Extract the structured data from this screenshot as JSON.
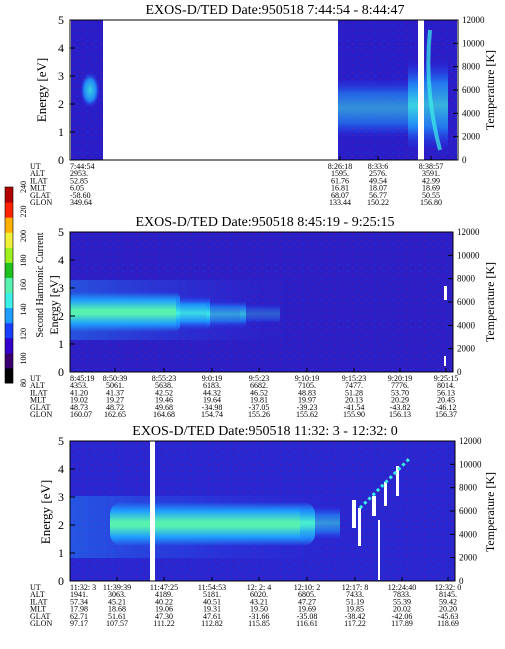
{
  "colorbar": {
    "label": "Second Harmonic Current",
    "ticks": [
      "80",
      "100",
      "120",
      "140",
      "160",
      "180",
      "200",
      "220",
      "240"
    ],
    "colors": [
      "#000000",
      "#3b0070",
      "#3300cc",
      "#1a40ff",
      "#1f9cff",
      "#3cf0e6",
      "#57f2b0",
      "#1fc21f",
      "#9ef01f",
      "#f0f03a",
      "#ffb000",
      "#ff2200",
      "#b40000"
    ]
  },
  "panels": [
    {
      "title": "EXOS-D/TED   Date:950518  7:44:54 - 8:44:47",
      "ylabel_left": "Energy [eV]",
      "ylabel_right": "Temperature [K]",
      "left_ticks": [
        "0",
        "1",
        "2",
        "3",
        "4",
        "5"
      ],
      "right_ticks": [
        "0",
        "2000",
        "4000",
        "6000",
        "8000",
        "10000",
        "12000"
      ],
      "row_labels": [
        "UT",
        "ALT",
        "ILAT",
        "MLT",
        "GLAT",
        "GLON"
      ],
      "columns": [
        [
          "7:44:54",
          "2953.",
          "52.85",
          "6.05",
          "-58.60",
          "349.64"
        ],
        [
          "8:26:18",
          "1595.",
          "61.76",
          "16.81",
          "68.07",
          "133.44"
        ],
        [
          "8:33:6",
          "2576.",
          "49.54",
          "18.07",
          "56.77",
          "150.22"
        ],
        [
          "8:38:57",
          "3591.",
          "42.99",
          "18.69",
          "50.55",
          "156.80"
        ]
      ]
    },
    {
      "title": "EXOS-D/TED   Date:950518  8:45:19 - 9:25:15",
      "ylabel_left": "Energy [eV]",
      "ylabel_right": "Temperature [K]",
      "left_ticks": [
        "0",
        "1",
        "2",
        "3",
        "4",
        "5"
      ],
      "right_ticks": [
        "0",
        "2000",
        "4000",
        "6000",
        "8000",
        "10000",
        "12000"
      ],
      "row_labels": [
        "UT",
        "ALT",
        "ILAT",
        "MLT",
        "GLAT",
        "GLON"
      ],
      "columns": [
        [
          "8:45:19",
          "4353.",
          "41.20",
          "19.02",
          "48.73",
          "160.07"
        ],
        [
          "8:50:39",
          "5061.",
          "41.37",
          "19.27",
          "48.72",
          "162.65"
        ],
        [
          "8:55:23",
          "5638.",
          "42.52",
          "19.46",
          "49.68",
          "164.68"
        ],
        [
          "9:0:19",
          "6183.",
          "44.32",
          "19.64",
          "-34.98",
          "154.74"
        ],
        [
          "9:5:23",
          "6682.",
          "46.52",
          "19.81",
          "-37.05",
          "155.26"
        ],
        [
          "9:10:19",
          "7105.",
          "48.83",
          "19.97",
          "-39.23",
          "155.62"
        ],
        [
          "9:15:23",
          "7477.",
          "51.28",
          "20.13",
          "-41.54",
          "155.90"
        ],
        [
          "9:20:19",
          "7776.",
          "53.70",
          "20.29",
          "-43.82",
          "156.13"
        ],
        [
          "9:25:15",
          "8014.",
          "56.13",
          "20.45",
          "-46.12",
          "156.37"
        ]
      ]
    },
    {
      "title": "EXOS-D/TED   Date:950518  11:32: 3 - 12:32: 0",
      "ylabel_left": "Energy [eV]",
      "ylabel_right": "Temperature [K]",
      "left_ticks": [
        "0",
        "1",
        "2",
        "3",
        "4",
        "5"
      ],
      "right_ticks": [
        "0",
        "2000",
        "4000",
        "6000",
        "8000",
        "10000",
        "12000"
      ],
      "row_labels": [
        "UT",
        "ALT",
        "ILAT",
        "MLT",
        "GLAT",
        "GLON"
      ],
      "columns": [
        [
          "11:32: 3",
          "1941.",
          "57.34",
          "17.98",
          "62.71",
          "97.17"
        ],
        [
          "11:39:39",
          "3063.",
          "45.21",
          "18.68",
          "51.61",
          "107.57"
        ],
        [
          "11:47:25",
          "4189.",
          "40.22",
          "19.06",
          "47.30",
          "111.22"
        ],
        [
          "11:54:53",
          "5181.",
          "40.51",
          "19.31",
          "47.61",
          "112.82"
        ],
        [
          "12: 2: 4",
          "6020.",
          "43.21",
          "19.50",
          "-31.66",
          "115.85"
        ],
        [
          "12:10: 2",
          "6805.",
          "47.27",
          "19.69",
          "-35.08",
          "116.61"
        ],
        [
          "12:17: 8",
          "7433.",
          "51.19",
          "19.85",
          "-38.42",
          "117.22"
        ],
        [
          "12:24:40",
          "7833.",
          "55.39",
          "20.02",
          "-42.06",
          "117.89"
        ],
        [
          "12:32: 0",
          "8145.",
          "59.42",
          "20.20",
          "-45.63",
          "118.69"
        ]
      ]
    }
  ],
  "chart_data": [
    {
      "type": "heatmap",
      "title": "EXOS-D/TED   Date:950518  7:44:54 - 8:44:47",
      "ylabel": "Energy [eV]",
      "ylabel_right": "Temperature [K]",
      "ylim": [
        0,
        5
      ],
      "ylim_right": [
        0,
        12000
      ],
      "color_scale": [
        80,
        240
      ],
      "color_scale_label": "Second Harmonic Current",
      "time_ticks": [
        "7:44:54",
        "8:26:18",
        "8:33:6",
        "8:38:57"
      ],
      "segments": [
        {
          "from": "7:44:54",
          "coverage": "short data segment at start",
          "peak_energy_eV": 2.5,
          "peak_level": 150
        },
        {
          "from": "8:26:18",
          "to": "8:44:47",
          "coverage": "data",
          "band_energy_eV": [
            1.5,
            3.0
          ],
          "peak_level": 145
        }
      ]
    },
    {
      "type": "heatmap",
      "title": "EXOS-D/TED   Date:950518  8:45:19 - 9:25:15",
      "ylabel": "Energy [eV]",
      "ylabel_right": "Temperature [K]",
      "ylim": [
        0,
        5
      ],
      "ylim_right": [
        0,
        12000
      ],
      "color_scale": [
        80,
        240
      ],
      "color_scale_label": "Second Harmonic Current",
      "time_ticks": [
        "8:45:19",
        "8:50:39",
        "8:55:23",
        "9:0:19",
        "9:5:23",
        "9:10:19",
        "9:15:23",
        "9:20:19",
        "9:25:15"
      ],
      "band": {
        "energy_eV": [
          1.4,
          2.6
        ],
        "peak_energy_eV": 1.9,
        "peak_level": 170,
        "intense_until": "8:55:23",
        "fades_by": "9:10:19"
      }
    },
    {
      "type": "heatmap",
      "title": "EXOS-D/TED   Date:950518  11:32: 3 - 12:32: 0",
      "ylabel": "Energy [eV]",
      "ylabel_right": "Temperature [K]",
      "ylim": [
        0,
        5
      ],
      "ylim_right": [
        0,
        12000
      ],
      "color_scale": [
        80,
        240
      ],
      "color_scale_label": "Second Harmonic Current",
      "time_ticks": [
        "11:32: 3",
        "11:39:39",
        "11:47:25",
        "11:54:53",
        "12: 2: 4",
        "12:10: 2",
        "12:17: 8",
        "12:24:40",
        "12:32: 0"
      ],
      "band": {
        "energy_eV": [
          1.4,
          2.6
        ],
        "peak_energy_eV": 1.9,
        "peak_level": 175,
        "intense_from": "11:39:39",
        "intense_until": "12: 2: 4"
      }
    }
  ]
}
